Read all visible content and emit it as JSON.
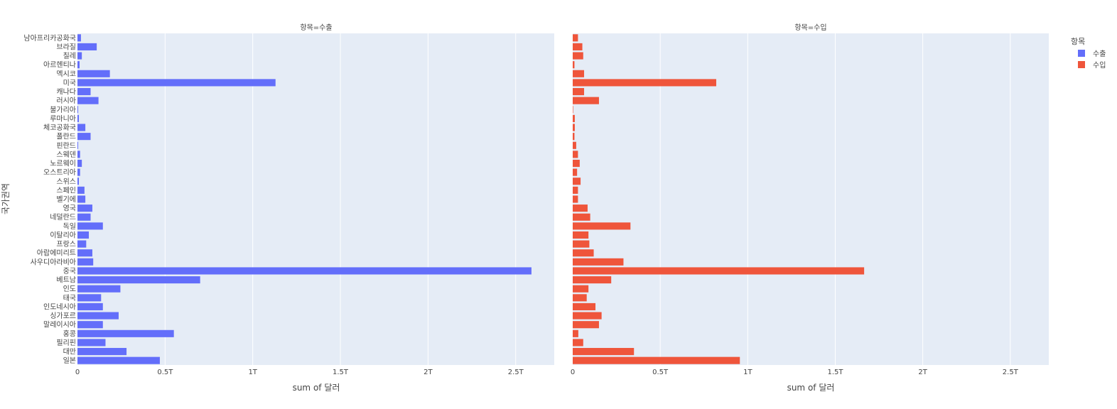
{
  "chart_data": {
    "type": "bar",
    "orientation": "horizontal",
    "facet_titles": [
      "항목=수출",
      "항목=수입"
    ],
    "xlabel": "sum of 달러",
    "ylabel": "국가권역",
    "x_tick_labels": [
      "0",
      "0.5T",
      "1T",
      "1.5T",
      "2T",
      "2.5T"
    ],
    "x_tick_values": [
      0,
      0.5,
      1,
      1.5,
      2,
      2.5
    ],
    "xlim": [
      0,
      2.72
    ],
    "x_unit": "T",
    "grid": true,
    "legend_title": "항목",
    "legend_position": "top-right",
    "categories": [
      "남아프리카공화국",
      "브라질",
      "칠레",
      "아르헨티나",
      "멕시코",
      "미국",
      "캐나다",
      "러시아",
      "불가리아",
      "루마니아",
      "체코공화국",
      "폴란드",
      "핀란드",
      "스웨덴",
      "노르웨이",
      "오스트리아",
      "스위스",
      "스페인",
      "벨기에",
      "영국",
      "네덜란드",
      "독일",
      "이탈리아",
      "프랑스",
      "아랍에미리트",
      "사우디아라비아",
      "중국",
      "베트남",
      "인도",
      "태국",
      "인도네시아",
      "싱가포르",
      "말레이시아",
      "홍콩",
      "필리핀",
      "대만",
      "일본"
    ],
    "series": [
      {
        "name": "수출",
        "color": "#636efa",
        "values": [
          0.02,
          0.11,
          0.025,
          0.012,
          0.185,
          1.13,
          0.075,
          0.12,
          0.004,
          0.008,
          0.045,
          0.075,
          0.004,
          0.015,
          0.025,
          0.015,
          0.008,
          0.04,
          0.045,
          0.085,
          0.075,
          0.145,
          0.065,
          0.05,
          0.085,
          0.09,
          2.59,
          0.7,
          0.245,
          0.135,
          0.145,
          0.235,
          0.145,
          0.55,
          0.16,
          0.28,
          0.47
        ]
      },
      {
        "name": "수입",
        "color": "#ef553b",
        "values": [
          0.03,
          0.055,
          0.06,
          0.01,
          0.065,
          0.82,
          0.065,
          0.15,
          0.002,
          0.012,
          0.012,
          0.01,
          0.02,
          0.03,
          0.04,
          0.025,
          0.045,
          0.03,
          0.03,
          0.085,
          0.1,
          0.33,
          0.09,
          0.095,
          0.12,
          0.29,
          1.665,
          0.22,
          0.09,
          0.08,
          0.13,
          0.165,
          0.15,
          0.032,
          0.06,
          0.35,
          0.955
        ]
      }
    ]
  }
}
